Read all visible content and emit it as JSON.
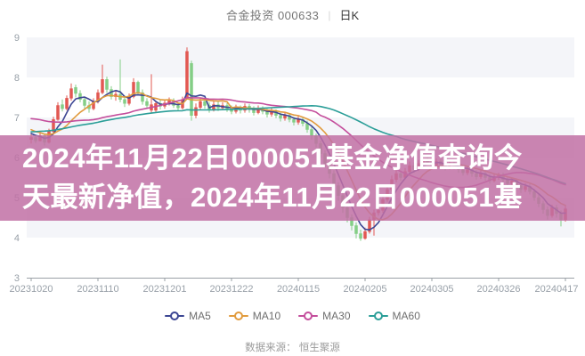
{
  "header": {
    "title": "合金投资 000633",
    "separator": "|",
    "period": "日K"
  },
  "overlay": {
    "line1": "2024年11月22日000051基金净值查询今",
    "line2": "天最新净值，2024年11月22日000051基",
    "bg_color": "#c170a5",
    "bg_opacity": 0.85,
    "text_color": "#ffffff"
  },
  "footer": {
    "source_label": "数据来源： 恒生聚源"
  },
  "chart_data": {
    "type": "candlestick",
    "title": "合金投资 000633",
    "period": "日K",
    "ylim": [
      3,
      9
    ],
    "y_ticks": [
      9,
      8,
      7,
      6,
      5,
      4,
      3
    ],
    "x_tick_labels": [
      "20231020",
      "20231110",
      "20231201",
      "20231222",
      "20240115",
      "20240205",
      "20240305",
      "20240326",
      "20240417"
    ],
    "x_tick_indices": [
      0,
      15,
      30,
      45,
      60,
      75,
      90,
      105,
      120
    ],
    "grid": {
      "split_band_color": "#f4f5f9",
      "plot_bg_color": "#ffffff",
      "axis_color": "#9aa0a6",
      "label_color": "#98a0a8",
      "legend_on": true,
      "legend_position": "bottom"
    },
    "candles": {
      "up_color": "#e25852",
      "down_color": "#84ce86",
      "ohlc": [
        [
          6.45,
          6.5,
          6.35,
          6.58
        ],
        [
          6.5,
          6.42,
          6.36,
          6.55
        ],
        [
          6.42,
          6.55,
          6.4,
          6.62
        ],
        [
          6.55,
          6.38,
          6.3,
          6.58
        ],
        [
          6.38,
          6.65,
          6.35,
          6.72
        ],
        [
          6.65,
          6.95,
          6.6,
          7.02
        ],
        [
          6.95,
          7.3,
          6.92,
          7.38
        ],
        [
          7.32,
          7.22,
          7.15,
          7.45
        ],
        [
          7.22,
          7.48,
          7.18,
          7.55
        ],
        [
          7.48,
          7.72,
          7.42,
          7.85
        ],
        [
          7.75,
          7.6,
          7.5,
          7.82
        ],
        [
          7.6,
          7.45,
          7.38,
          7.68
        ],
        [
          7.45,
          7.3,
          7.22,
          7.52
        ],
        [
          7.3,
          7.22,
          7.12,
          7.4
        ],
        [
          7.22,
          7.4,
          7.18,
          7.48
        ],
        [
          7.4,
          7.62,
          7.35,
          7.7
        ],
        [
          7.62,
          7.95,
          7.58,
          8.32
        ],
        [
          7.95,
          7.7,
          7.62,
          8.02
        ],
        [
          7.7,
          7.52,
          7.45,
          7.78
        ],
        [
          7.52,
          7.58,
          7.42,
          7.66
        ],
        [
          7.58,
          7.45,
          7.38,
          8.45
        ],
        [
          7.45,
          7.35,
          7.26,
          7.55
        ],
        [
          7.35,
          7.52,
          7.3,
          7.6
        ],
        [
          7.52,
          7.88,
          7.48,
          7.98
        ],
        [
          7.88,
          7.62,
          7.55,
          7.92
        ],
        [
          7.62,
          7.4,
          7.32,
          7.7
        ],
        [
          7.4,
          7.3,
          7.22,
          7.48
        ],
        [
          7.18,
          7.32,
          7.1,
          8.08
        ],
        [
          7.18,
          7.35,
          7.14,
          7.42
        ],
        [
          7.35,
          7.28,
          7.2,
          7.45
        ],
        [
          7.28,
          7.36,
          7.22,
          7.44
        ],
        [
          7.36,
          7.42,
          7.3,
          7.5
        ],
        [
          7.42,
          7.3,
          7.24,
          7.48
        ],
        [
          7.3,
          7.24,
          7.16,
          7.38
        ],
        [
          7.24,
          7.45,
          7.2,
          7.52
        ],
        [
          7.5,
          8.65,
          7.45,
          8.75
        ],
        [
          8.35,
          7.05,
          6.92,
          8.42
        ],
        [
          7.05,
          7.25,
          6.98,
          7.35
        ],
        [
          7.25,
          7.4,
          7.18,
          7.5
        ],
        [
          7.4,
          7.3,
          7.22,
          7.48
        ],
        [
          7.3,
          7.2,
          7.12,
          7.38
        ],
        [
          7.2,
          7.32,
          7.15,
          7.4
        ],
        [
          7.32,
          7.24,
          7.16,
          7.4
        ],
        [
          7.24,
          7.3,
          7.18,
          7.38
        ],
        [
          7.3,
          7.22,
          7.14,
          7.36
        ],
        [
          7.22,
          7.15,
          7.08,
          7.3
        ],
        [
          7.15,
          7.25,
          7.1,
          7.32
        ],
        [
          7.25,
          7.18,
          7.1,
          7.3
        ],
        [
          7.18,
          7.28,
          7.12,
          7.35
        ],
        [
          7.28,
          7.2,
          7.12,
          7.34
        ],
        [
          7.2,
          7.12,
          7.05,
          7.28
        ],
        [
          7.12,
          7.22,
          7.08,
          7.3
        ],
        [
          7.22,
          7.15,
          7.08,
          7.28
        ],
        [
          7.15,
          7.08,
          7.0,
          7.22
        ],
        [
          7.08,
          7.15,
          7.02,
          7.24
        ],
        [
          7.15,
          7.05,
          6.98,
          7.2
        ],
        [
          7.05,
          6.98,
          6.9,
          7.12
        ],
        [
          6.98,
          7.05,
          6.92,
          7.14
        ],
        [
          7.05,
          6.95,
          6.88,
          7.1
        ],
        [
          6.95,
          6.88,
          6.8,
          7.02
        ],
        [
          6.88,
          6.95,
          6.82,
          7.04
        ],
        [
          6.95,
          6.85,
          6.78,
          7.0
        ],
        [
          6.85,
          6.7,
          6.62,
          6.92
        ],
        [
          6.7,
          6.55,
          6.45,
          6.78
        ],
        [
          6.55,
          6.35,
          6.25,
          6.6
        ],
        [
          6.35,
          6.1,
          6.0,
          6.42
        ],
        [
          6.1,
          5.85,
          5.75,
          6.18
        ],
        [
          5.85,
          5.6,
          5.48,
          5.92
        ],
        [
          5.6,
          5.3,
          5.18,
          5.68
        ],
        [
          5.3,
          5.05,
          4.92,
          5.38
        ],
        [
          5.05,
          4.75,
          4.62,
          5.12
        ],
        [
          4.75,
          4.5,
          4.38,
          4.82
        ],
        [
          4.5,
          4.3,
          4.18,
          4.58
        ],
        [
          4.3,
          4.1,
          3.98,
          4.38
        ],
        [
          4.1,
          3.98,
          3.92,
          4.2
        ],
        [
          3.98,
          4.15,
          3.95,
          4.25
        ],
        [
          4.15,
          4.45,
          4.1,
          4.52
        ],
        [
          4.45,
          4.62,
          4.05,
          4.7
        ],
        [
          4.62,
          4.68,
          4.55,
          4.78
        ],
        [
          4.68,
          4.95,
          4.62,
          5.02
        ],
        [
          4.95,
          5.2,
          4.9,
          5.3
        ],
        [
          5.2,
          5.45,
          5.15,
          5.55
        ],
        [
          5.45,
          5.6,
          5.38,
          5.7
        ],
        [
          5.6,
          5.5,
          5.42,
          5.68
        ],
        [
          5.5,
          5.65,
          5.45,
          5.74
        ],
        [
          5.65,
          5.8,
          5.6,
          5.9
        ],
        [
          5.8,
          5.7,
          5.62,
          5.88
        ],
        [
          5.7,
          5.85,
          5.66,
          5.94
        ],
        [
          5.85,
          5.95,
          5.8,
          6.05
        ],
        [
          5.95,
          5.88,
          5.8,
          6.02
        ],
        [
          5.88,
          5.8,
          5.72,
          5.95
        ],
        [
          5.8,
          5.9,
          5.75,
          5.98
        ],
        [
          5.9,
          5.82,
          5.74,
          5.96
        ],
        [
          5.82,
          5.75,
          5.68,
          5.9
        ],
        [
          5.75,
          5.85,
          5.7,
          5.92
        ],
        [
          5.85,
          5.78,
          5.7,
          5.92
        ],
        [
          5.78,
          5.7,
          5.62,
          5.85
        ],
        [
          5.7,
          5.62,
          5.55,
          5.78
        ],
        [
          5.62,
          5.7,
          5.56,
          5.78
        ],
        [
          5.7,
          5.6,
          5.52,
          5.76
        ],
        [
          5.6,
          5.52,
          5.45,
          5.68
        ],
        [
          5.52,
          5.6,
          5.46,
          5.68
        ],
        [
          5.6,
          5.5,
          5.42,
          5.66
        ],
        [
          5.5,
          5.42,
          5.35,
          5.58
        ],
        [
          5.42,
          5.5,
          5.38,
          5.58
        ],
        [
          5.5,
          5.55,
          5.44,
          5.62
        ],
        [
          5.55,
          5.45,
          5.38,
          5.62
        ],
        [
          5.45,
          5.35,
          5.28,
          5.52
        ],
        [
          5.35,
          5.42,
          5.3,
          5.5
        ],
        [
          5.42,
          5.3,
          5.22,
          5.48
        ],
        [
          5.3,
          5.2,
          5.12,
          5.38
        ],
        [
          5.2,
          5.28,
          5.14,
          5.36
        ],
        [
          5.28,
          5.15,
          5.08,
          5.34
        ],
        [
          5.15,
          5.0,
          4.92,
          5.22
        ],
        [
          5.0,
          4.85,
          4.76,
          5.08
        ],
        [
          4.85,
          4.7,
          4.6,
          4.92
        ],
        [
          4.7,
          4.55,
          4.45,
          4.78
        ],
        [
          4.55,
          4.75,
          4.5,
          4.82
        ],
        [
          4.75,
          4.6,
          4.5,
          4.82
        ],
        [
          4.6,
          4.45,
          4.28,
          4.68
        ],
        [
          4.45,
          4.72,
          4.4,
          4.8
        ]
      ]
    },
    "history_closes": [
      6.05,
      6.08,
      6.1,
      6.12,
      6.1,
      6.15,
      6.18,
      6.2,
      6.18,
      6.22,
      6.25,
      6.22,
      6.28,
      6.3,
      6.28,
      6.32,
      6.35,
      6.32,
      6.38,
      6.4,
      6.38,
      6.42,
      6.4,
      6.44,
      6.42,
      6.45,
      6.44,
      6.46,
      6.45,
      6.48,
      6.6,
      6.8,
      7.0,
      7.15,
      7.25,
      7.3,
      7.35,
      7.3,
      7.25,
      7.3,
      7.2,
      7.15,
      7.2,
      7.1,
      7.05,
      7.1,
      7.0,
      6.95,
      7.0,
      6.9,
      6.85,
      6.9,
      6.8,
      6.75,
      6.8,
      6.7,
      6.65,
      6.7,
      6.6,
      6.55
    ],
    "ma_series": [
      {
        "name": "MA5",
        "window": 5,
        "color": "#3c4693"
      },
      {
        "name": "MA10",
        "window": 10,
        "color": "#e19b3e"
      },
      {
        "name": "MA30",
        "window": 30,
        "color": "#c44e9c"
      },
      {
        "name": "MA60",
        "window": 60,
        "color": "#2b9e98"
      }
    ]
  }
}
